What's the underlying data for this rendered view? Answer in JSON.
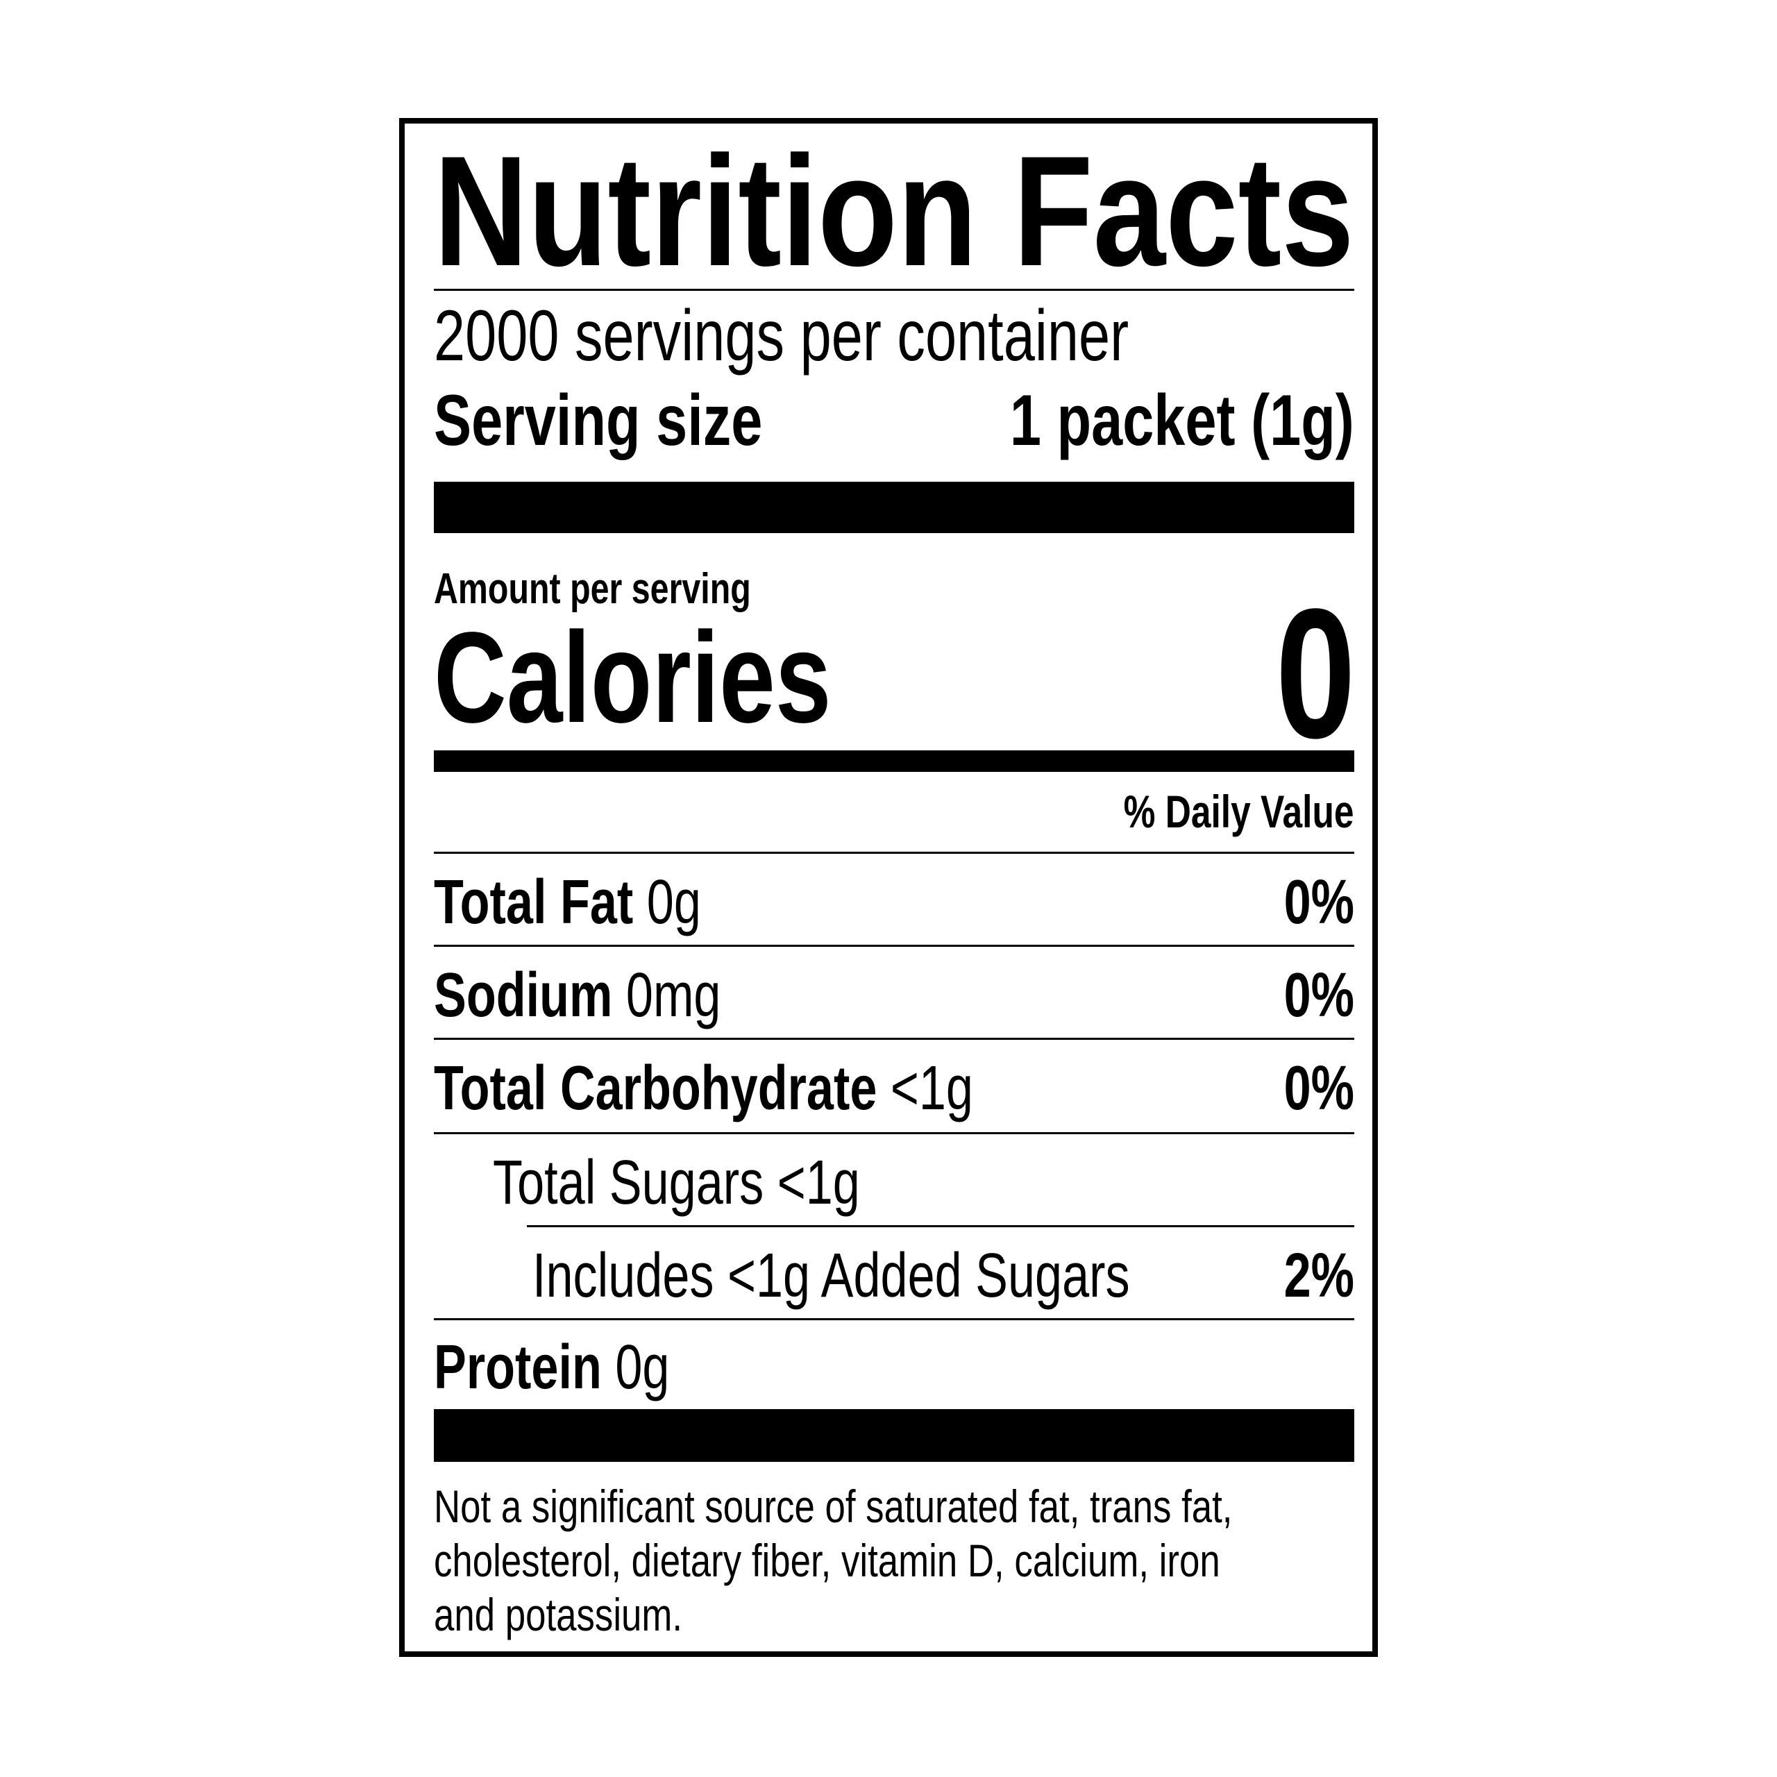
{
  "title": "Nutrition Facts",
  "servings_per_container": "2000 servings per container",
  "serving_size": {
    "label": "Serving size",
    "value": "1 packet (1g)"
  },
  "amount_per_serving": "Amount per serving",
  "calories": {
    "label": "Calories",
    "value": "0"
  },
  "daily_value_header": "% Daily Value",
  "nutrients": [
    {
      "name": "Total Fat",
      "amount": "0g",
      "dv": "0%"
    },
    {
      "name": "Sodium",
      "amount": "0mg",
      "dv": "0%"
    },
    {
      "name": "Total Carbohydrate",
      "amount": "<1g",
      "dv": "0%"
    },
    {
      "name": "",
      "amount": "Total Sugars <1g",
      "dv": ""
    },
    {
      "name": "",
      "amount": "Includes <1g Added Sugars",
      "dv": "2%"
    },
    {
      "name": "Protein",
      "amount": "0g",
      "dv": ""
    }
  ],
  "footnote": [
    "Not a significant source of saturated fat, trans fat,",
    "cholesterol, dietary fiber, vitamin D, calcium, iron",
    "and potassium."
  ]
}
